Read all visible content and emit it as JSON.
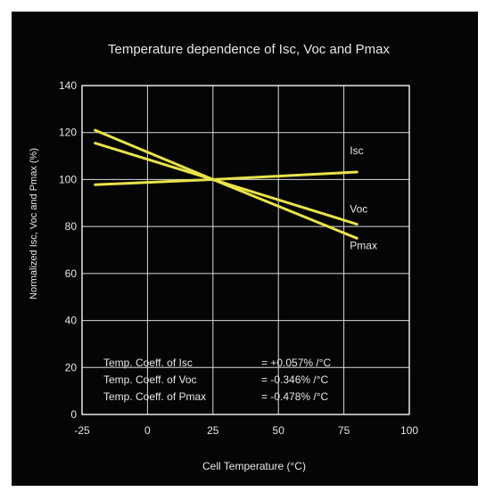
{
  "chart_data": {
    "type": "line",
    "title": "Temperature dependence of Isc, Voc and Pmax",
    "xlabel": "Cell Temperature (°C)",
    "ylabel": "Normalized Isc, Voc and Pmax (%)",
    "xlim": [
      -25,
      100
    ],
    "ylim": [
      0,
      140
    ],
    "xticks": [
      -25,
      0,
      25,
      50,
      75,
      100
    ],
    "yticks": [
      0,
      20,
      40,
      60,
      80,
      100,
      120,
      140
    ],
    "xtick_labels": [
      "-25",
      "0",
      "25",
      "50",
      "75",
      "100"
    ],
    "ytick_labels": [
      "0",
      "20",
      "40",
      "60",
      "80",
      "100",
      "120",
      "140"
    ],
    "grid": true,
    "series": [
      {
        "name": "Isc",
        "color": "#e9e24a",
        "x": [
          -20,
          25,
          80
        ],
        "y": [
          97.8,
          100,
          103.2
        ]
      },
      {
        "name": "Voc",
        "color": "#e9e24a",
        "x": [
          -20,
          25,
          80
        ],
        "y": [
          115.5,
          100,
          81.0
        ]
      },
      {
        "name": "Pmax",
        "color": "#e9e24a",
        "x": [
          -20,
          25,
          80
        ],
        "y": [
          121.0,
          100,
          75.0
        ]
      }
    ],
    "annotations": [
      {
        "label": "Temp. Coeff. of Isc",
        "value": "= +0.057% /°C"
      },
      {
        "label": "Temp. Coeff. of Voc",
        "value": "= -0.346% /°C"
      },
      {
        "label": "Temp. Coeff. of Pmax",
        "value": "= -0.478% /°C"
      }
    ]
  },
  "colors": {
    "background": "#050505",
    "axis": "#e6e6e6",
    "grid": "#d9d9d9",
    "line": "#e9e24a",
    "text": "#e6e6e6"
  }
}
